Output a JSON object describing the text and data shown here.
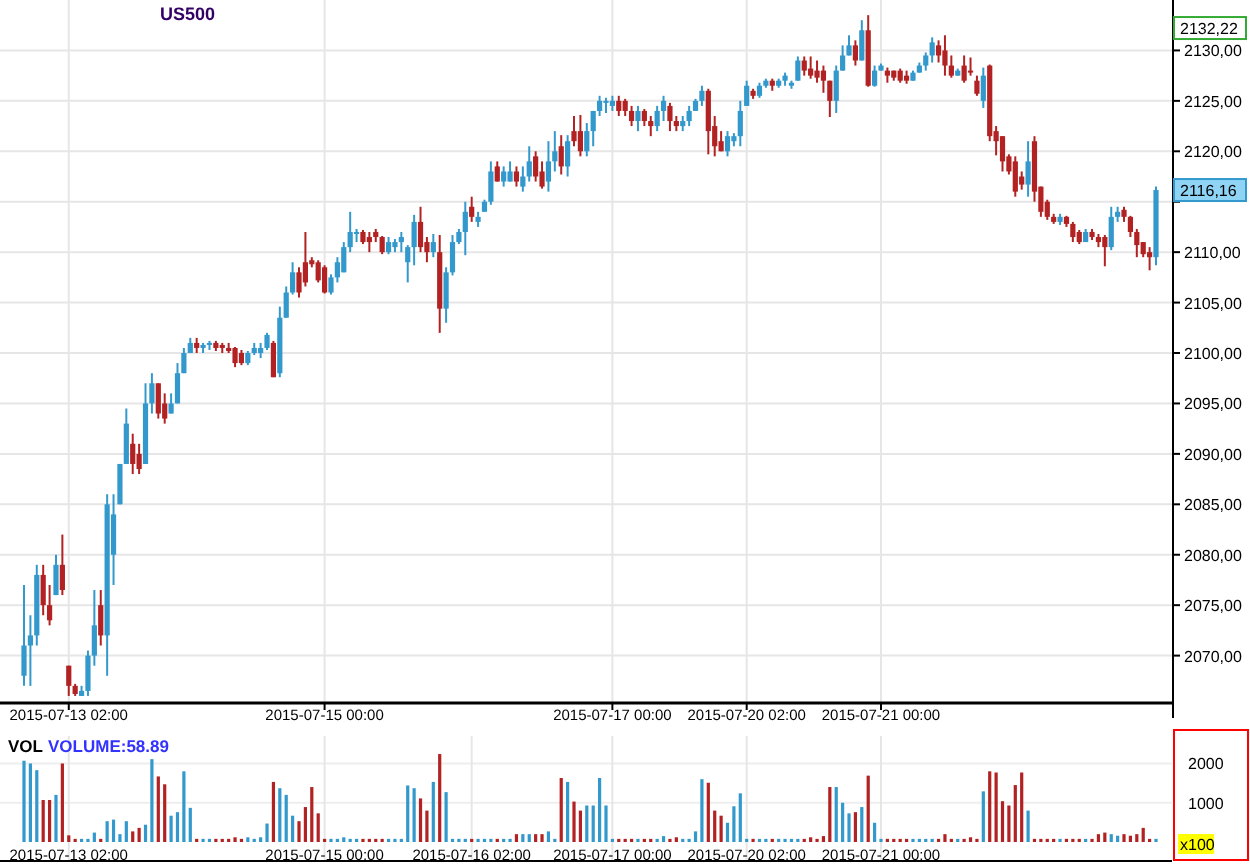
{
  "chart_data": [
    {
      "type": "candlestick",
      "title": "US500",
      "grid": true,
      "categories": [
        null,
        null,
        null,
        null,
        null,
        null,
        null,
        "2015-07-13 02:00",
        null,
        null,
        null,
        null,
        null,
        null,
        null,
        null,
        null,
        null,
        null,
        null,
        null,
        null,
        null,
        null,
        null,
        null,
        null,
        null,
        null,
        null,
        null,
        null,
        null,
        null,
        null,
        null,
        null,
        null,
        null,
        null,
        null,
        null,
        null,
        null,
        null,
        null,
        null,
        "2015-07-15 00:00",
        null,
        null,
        null,
        null,
        null,
        null,
        null,
        null,
        null,
        null,
        null,
        null,
        null,
        null,
        null,
        null,
        null,
        null,
        null,
        null,
        null,
        null,
        null,
        null,
        null,
        null,
        null,
        null,
        null,
        null,
        null,
        null,
        null,
        null,
        null,
        null,
        null,
        null,
        null,
        null,
        null,
        null,
        null,
        null,
        "2015-07-17 00:00",
        null,
        null,
        null,
        null,
        null,
        null,
        null,
        null,
        null,
        null,
        null,
        null,
        null,
        null,
        null,
        null,
        null,
        null,
        null,
        null,
        "2015-07-20 02:00",
        null,
        null,
        null,
        null,
        null,
        null,
        null,
        null,
        null,
        null,
        null,
        null,
        null,
        null,
        null,
        null,
        null,
        null,
        null,
        null,
        "2015-07-21 00:00",
        null,
        null,
        null,
        null,
        null,
        null,
        null,
        null,
        null,
        null,
        null,
        null,
        null,
        null,
        null,
        null,
        null,
        null,
        null,
        null,
        null,
        null,
        null,
        null,
        null,
        null,
        null,
        null,
        null,
        null,
        null,
        null,
        null,
        null,
        null,
        null,
        null,
        null,
        null,
        null,
        null,
        null,
        null
      ],
      "ohlc": [
        [
          2068,
          2077,
          2067,
          2071
        ],
        [
          2071,
          2074,
          2067,
          2072
        ],
        [
          2072,
          2079,
          2071,
          2078
        ],
        [
          2078,
          2079,
          2074,
          2075
        ],
        [
          2075,
          2077,
          2073,
          2073.5
        ],
        [
          2076,
          2080,
          2076,
          2079
        ],
        [
          2079,
          2082,
          2076,
          2076.5
        ],
        [
          2069,
          2069,
          2066,
          2067
        ],
        [
          2067,
          2067.2,
          2066,
          2066.2
        ],
        [
          2066,
          2067,
          2066,
          2066.5
        ],
        [
          2066.5,
          2070.5,
          2066,
          2070
        ],
        [
          2070,
          2076.5,
          2069,
          2073
        ],
        [
          2075,
          2076.5,
          2071,
          2072
        ],
        [
          2072,
          2086,
          2068,
          2085
        ],
        [
          2080,
          2086,
          2077,
          2084
        ],
        [
          2085,
          2089,
          2085,
          2089
        ],
        [
          2089,
          2094.5,
          2089,
          2093
        ],
        [
          2091,
          2092,
          2088,
          2089
        ],
        [
          2090,
          2091,
          2088,
          2088.5
        ],
        [
          2089,
          2097,
          2089,
          2095
        ],
        [
          2095,
          2098,
          2094,
          2097
        ],
        [
          2097,
          2097,
          2093.5,
          2094
        ],
        [
          2095,
          2096,
          2093,
          2093.5
        ],
        [
          2094,
          2096,
          2094,
          2095
        ],
        [
          2095,
          2099,
          2095,
          2098
        ],
        [
          2098,
          2100.5,
          2098,
          2100
        ],
        [
          2100,
          2101.5,
          2100,
          2101
        ],
        [
          2101,
          2101.5,
          2100,
          2100.5
        ],
        [
          2100.5,
          2101,
          2100,
          2100.8
        ],
        [
          2100.8,
          2101.2,
          2100.3,
          2101
        ],
        [
          2101,
          2101.2,
          2100.2,
          2100.5
        ],
        [
          2100.8,
          2101,
          2100,
          2100.5
        ],
        [
          2100.5,
          2101,
          2100,
          2100.2
        ],
        [
          2100.5,
          2100.6,
          2098.6,
          2099
        ],
        [
          2100,
          2100.3,
          2098.8,
          2099
        ],
        [
          2099,
          2100.2,
          2098.8,
          2100
        ],
        [
          2100,
          2101,
          2099.8,
          2100.5
        ],
        [
          2100,
          2101,
          2099.5,
          2100.5
        ],
        [
          2100.5,
          2102,
          2100.3,
          2101.8
        ],
        [
          2101,
          2101.2,
          2097.6,
          2097.6
        ],
        [
          2098,
          2104.6,
          2097.6,
          2103.5
        ],
        [
          2103.5,
          2106.6,
          2103.5,
          2106
        ],
        [
          2106,
          2109,
          2105.8,
          2108
        ],
        [
          2108,
          2108.5,
          2105.5,
          2106
        ],
        [
          2109,
          2112,
          2106.6,
          2107
        ],
        [
          2109.2,
          2109.5,
          2108.5,
          2108.8
        ],
        [
          2109,
          2109.2,
          2107,
          2107.2
        ],
        [
          2108.5,
          2108.7,
          2105.9,
          2106
        ],
        [
          2106,
          2107.8,
          2105.8,
          2107.5
        ],
        [
          2107.5,
          2109.5,
          2107,
          2109
        ],
        [
          2108,
          2111,
          2108,
          2110.5
        ],
        [
          2110.5,
          2114,
          2110,
          2112
        ],
        [
          2112,
          2112.3,
          2111,
          2112
        ],
        [
          2112,
          2112.2,
          2110.8,
          2111
        ],
        [
          2111.5,
          2112,
          2110,
          2111
        ],
        [
          2112,
          2112.3,
          2111,
          2111.5
        ],
        [
          2111.5,
          2111.6,
          2109.8,
          2110
        ],
        [
          2110,
          2111.5,
          2109.8,
          2111
        ],
        [
          2110.5,
          2111.3,
          2110,
          2111
        ],
        [
          2111,
          2112,
          2110,
          2111.5
        ],
        [
          2109,
          2110.7,
          2107,
          2110.5
        ],
        [
          2110.5,
          2113.7,
          2108.7,
          2113
        ],
        [
          2113,
          2114.5,
          2110,
          2110.5
        ],
        [
          2111,
          2111.5,
          2109,
          2110
        ],
        [
          2110,
          2111.8,
          2109.5,
          2111
        ],
        [
          2110,
          2111.7,
          2102,
          2104.4
        ],
        [
          2104.4,
          2108.5,
          2103,
          2108
        ],
        [
          2108,
          2111.7,
          2107.7,
          2111
        ],
        [
          2111,
          2112.3,
          2110.8,
          2112
        ],
        [
          2112,
          2115,
          2109.7,
          2114
        ],
        [
          2114.5,
          2115.5,
          2113,
          2113.5
        ],
        [
          2113,
          2114,
          2112.5,
          2113.5
        ],
        [
          2114,
          2115.2,
          2114,
          2115
        ],
        [
          2115,
          2119,
          2114.7,
          2118
        ],
        [
          2118.5,
          2119,
          2117,
          2117
        ],
        [
          2117,
          2118.5,
          2116.5,
          2118
        ],
        [
          2117,
          2119,
          2117,
          2118
        ],
        [
          2118,
          2118.5,
          2116.5,
          2117
        ],
        [
          2116.5,
          2118.5,
          2116,
          2117.5
        ],
        [
          2117.5,
          2120.5,
          2117,
          2119
        ],
        [
          2119.5,
          2120,
          2117,
          2117.5
        ],
        [
          2118,
          2119,
          2116.3,
          2116.5
        ],
        [
          2117,
          2121,
          2116,
          2119
        ],
        [
          2119,
          2122,
          2118,
          2120
        ],
        [
          2120.5,
          2121.6,
          2117.7,
          2118.5
        ],
        [
          2118.5,
          2121.6,
          2117.5,
          2121
        ],
        [
          2122,
          2123.5,
          2120.5,
          2121
        ],
        [
          2122,
          2123.6,
          2119.5,
          2120
        ],
        [
          2120,
          2122.8,
          2119.5,
          2122
        ],
        [
          2122,
          2124,
          2120.5,
          2124
        ],
        [
          2124,
          2125.5,
          2123.5,
          2125
        ],
        [
          2125,
          2125.3,
          2123.8,
          2125
        ],
        [
          2124.5,
          2125.5,
          2124,
          2125
        ],
        [
          2125,
          2125.5,
          2123.5,
          2124
        ],
        [
          2125,
          2125.2,
          2123.5,
          2124
        ],
        [
          2124,
          2124.5,
          2122.5,
          2123
        ],
        [
          2123,
          2124.5,
          2122,
          2124
        ],
        [
          2124,
          2124.2,
          2122.5,
          2123
        ],
        [
          2123,
          2123.5,
          2121.5,
          2122.5
        ],
        [
          2122.5,
          2124.5,
          2122,
          2124
        ],
        [
          2124,
          2125.5,
          2123,
          2125
        ],
        [
          2124.5,
          2124.8,
          2122,
          2123
        ],
        [
          2123,
          2123.5,
          2122,
          2122.5
        ],
        [
          2122.5,
          2123.5,
          2122,
          2123
        ],
        [
          2123,
          2124.5,
          2122.5,
          2124
        ],
        [
          2124,
          2125.2,
          2124,
          2125
        ],
        [
          2125,
          2126.5,
          2124.5,
          2126
        ],
        [
          2126,
          2126.2,
          2119.7,
          2122
        ],
        [
          2122.5,
          2123.5,
          2119.5,
          2120.5
        ],
        [
          2121,
          2122,
          2120,
          2120
        ],
        [
          2120,
          2122,
          2119.5,
          2121.5
        ],
        [
          2121,
          2121.8,
          2120.5,
          2121.5
        ],
        [
          2121.5,
          2125,
          2120.5,
          2124
        ],
        [
          2124.5,
          2127,
          2124.5,
          2126.5
        ],
        [
          2126,
          2126.2,
          2125.2,
          2125.5
        ],
        [
          2125.5,
          2126.8,
          2125.3,
          2126.5
        ],
        [
          2126.5,
          2127.2,
          2126.3,
          2127
        ],
        [
          2127,
          2127.2,
          2126,
          2126.5
        ],
        [
          2126.5,
          2127.2,
          2126.3,
          2127
        ],
        [
          2127,
          2127.8,
          2126.5,
          2127.5
        ],
        [
          2126.5,
          2127,
          2126.2,
          2126.8
        ],
        [
          2127,
          2129.4,
          2127,
          2129
        ],
        [
          2129,
          2129.4,
          2127.5,
          2128
        ],
        [
          2128.2,
          2129.4,
          2127.2,
          2127.5
        ],
        [
          2128,
          2129,
          2126.8,
          2127.3
        ],
        [
          2128,
          2128.5,
          2125.8,
          2127
        ],
        [
          2127,
          2127,
          2123.4,
          2125
        ],
        [
          2125,
          2128.5,
          2123.8,
          2128
        ],
        [
          2128,
          2130.5,
          2128,
          2129.5
        ],
        [
          2129.5,
          2131.5,
          2129.5,
          2130.5
        ],
        [
          2130.5,
          2131,
          2128.5,
          2129
        ],
        [
          2129,
          2133,
          2129,
          2132
        ],
        [
          2132,
          2133.5,
          2126.4,
          2126.5
        ],
        [
          2126.5,
          2128.5,
          2126.4,
          2128
        ],
        [
          2128,
          2128.7,
          2128,
          2128.5
        ],
        [
          2128,
          2128.3,
          2126.8,
          2127.5
        ],
        [
          2128,
          2128,
          2127,
          2127.3
        ],
        [
          2128,
          2128.2,
          2126.8,
          2127
        ],
        [
          2127.5,
          2128,
          2126.7,
          2127
        ],
        [
          2127,
          2128,
          2127,
          2127.8
        ],
        [
          2127.8,
          2128.8,
          2127.8,
          2128.5
        ],
        [
          2128.5,
          2129.8,
          2128,
          2129.5
        ],
        [
          2129.5,
          2131.3,
          2128.8,
          2130.8
        ],
        [
          2130.5,
          2131,
          2128.8,
          2129.5
        ],
        [
          2130,
          2131.5,
          2127.5,
          2128.5
        ],
        [
          2128.5,
          2129.5,
          2127.3,
          2127.5
        ],
        [
          2127.5,
          2128.2,
          2127.5,
          2128
        ],
        [
          2128.5,
          2129.5,
          2126.8,
          2127
        ],
        [
          2128,
          2129.3,
          2127.5,
          2127.8
        ],
        [
          2127,
          2127.5,
          2125.5,
          2125.7
        ],
        [
          2125,
          2128.3,
          2124.3,
          2127.5
        ],
        [
          2128.5,
          2128.6,
          2121,
          2121.5
        ],
        [
          2122,
          2122.5,
          2119.6,
          2121
        ],
        [
          2121.5,
          2121.5,
          2118,
          2119
        ],
        [
          2119.5,
          2119.7,
          2117.7,
          2118
        ],
        [
          2119,
          2119.5,
          2115.5,
          2116
        ],
        [
          2117.5,
          2118,
          2116.2,
          2116.7
        ],
        [
          2116.7,
          2121,
          2115.5,
          2119
        ],
        [
          2121,
          2121.5,
          2115,
          2116
        ],
        [
          2116.5,
          2116.5,
          2113.5,
          2114
        ],
        [
          2115,
          2115.2,
          2113.2,
          2113.5
        ],
        [
          2113.5,
          2113.8,
          2112.8,
          2113
        ],
        [
          2113,
          2113.8,
          2112.7,
          2113.5
        ],
        [
          2113.5,
          2113.6,
          2112.5,
          2112.8
        ],
        [
          2112.8,
          2113,
          2111,
          2111.5
        ],
        [
          2112,
          2112.2,
          2110.8,
          2111
        ],
        [
          2111,
          2112.3,
          2111,
          2112
        ],
        [
          2112,
          2112.3,
          2111.2,
          2111.5
        ],
        [
          2111.5,
          2111.8,
          2110.5,
          2111
        ],
        [
          2111.5,
          2111.7,
          2108.6,
          2110.5
        ],
        [
          2110.5,
          2114.5,
          2110.2,
          2113.5
        ],
        [
          2113.5,
          2114.5,
          2113,
          2114
        ],
        [
          2114.2,
          2114.5,
          2113,
          2113.5
        ],
        [
          2113.5,
          2113.6,
          2111.5,
          2112
        ],
        [
          2112,
          2112.3,
          2109.5,
          2110.7
        ],
        [
          2111,
          2111,
          2109.5,
          2109.8
        ],
        [
          2110,
          2110.5,
          2108.2,
          2109.5
        ],
        [
          2109.5,
          2116.5,
          2108.7,
          2116.16
        ]
      ],
      "colors": [
        "#3399cc",
        "#3399cc",
        "#3399cc",
        "#b22222",
        "#b22222",
        "#3399cc",
        "#b22222",
        "#b22222",
        "#b22222",
        "#3399cc",
        "#3399cc",
        "#3399cc",
        "#b22222",
        "#3399cc",
        "#3399cc",
        "#3399cc",
        "#3399cc",
        "#b22222",
        "#b22222",
        "#3399cc",
        "#3399cc",
        "#b22222",
        "#b22222",
        "#3399cc",
        "#3399cc",
        "#3399cc",
        "#3399cc",
        "#b22222",
        "#3399cc",
        "#3399cc",
        "#b22222",
        "#b22222",
        "#b22222",
        "#b22222",
        "#b22222",
        "#3399cc",
        "#3399cc",
        "#3399cc",
        "#3399cc",
        "#b22222",
        "#3399cc",
        "#3399cc",
        "#3399cc",
        "#b22222",
        "#b22222",
        "#b22222",
        "#b22222",
        "#b22222",
        "#3399cc",
        "#3399cc",
        "#3399cc",
        "#3399cc",
        "#3399cc",
        "#b22222",
        "#b22222",
        "#b22222",
        "#b22222",
        "#3399cc",
        "#3399cc",
        "#3399cc",
        "#3399cc",
        "#3399cc",
        "#b22222",
        "#b22222",
        "#3399cc",
        "#b22222",
        "#3399cc",
        "#3399cc",
        "#3399cc",
        "#3399cc",
        "#b22222",
        "#3399cc",
        "#3399cc",
        "#3399cc",
        "#b22222",
        "#3399cc",
        "#3399cc",
        "#b22222",
        "#3399cc",
        "#3399cc",
        "#b22222",
        "#b22222",
        "#3399cc",
        "#3399cc",
        "#b22222",
        "#3399cc",
        "#b22222",
        "#b22222",
        "#3399cc",
        "#3399cc",
        "#3399cc",
        "#3399cc",
        "#3399cc",
        "#b22222",
        "#b22222",
        "#b22222",
        "#3399cc",
        "#b22222",
        "#b22222",
        "#3399cc",
        "#3399cc",
        "#b22222",
        "#b22222",
        "#3399cc",
        "#3399cc",
        "#3399cc",
        "#3399cc",
        "#b22222",
        "#b22222",
        "#b22222",
        "#3399cc",
        "#3399cc",
        "#3399cc",
        "#3399cc",
        "#b22222",
        "#3399cc",
        "#3399cc",
        "#b22222",
        "#3399cc",
        "#3399cc",
        "#3399cc",
        "#3399cc",
        "#b22222",
        "#b22222",
        "#b22222",
        "#b22222",
        "#b22222",
        "#3399cc",
        "#3399cc",
        "#3399cc",
        "#b22222",
        "#3399cc",
        "#b22222",
        "#3399cc",
        "#3399cc",
        "#b22222",
        "#b22222",
        "#b22222",
        "#b22222",
        "#3399cc",
        "#3399cc",
        "#3399cc",
        "#3399cc",
        "#b22222",
        "#b22222",
        "#b22222",
        "#3399cc",
        "#b22222",
        "#b22222",
        "#b22222",
        "#3399cc",
        "#b22222",
        "#b22222",
        "#b22222",
        "#b22222",
        "#b22222",
        "#b22222",
        "#3399cc",
        "#b22222",
        "#b22222",
        "#b22222",
        "#b22222",
        "#3399cc",
        "#b22222",
        "#b22222",
        "#b22222",
        "#3399cc",
        "#b22222",
        "#b22222",
        "#b22222",
        "#3399cc",
        "#3399cc",
        "#b22222",
        "#b22222",
        "#b22222",
        "#b22222",
        "#b22222",
        "#3399cc"
      ],
      "ylim": [
        2065.4,
        2135
      ],
      "yticks": [
        {
          "value": 2070,
          "label": "2070,00"
        },
        {
          "value": 2075,
          "label": "2075,00"
        },
        {
          "value": 2080,
          "label": "2080,00"
        },
        {
          "value": 2085,
          "label": "2085,00"
        },
        {
          "value": 2090,
          "label": "2090,00"
        },
        {
          "value": 2095,
          "label": "2095,00"
        },
        {
          "value": 2100,
          "label": "2100,00"
        },
        {
          "value": 2105,
          "label": "2105,00"
        },
        {
          "value": 2110,
          "label": "2110,00"
        },
        {
          "value": 2115,
          "label": null
        },
        {
          "value": 2120,
          "label": "2120,00"
        },
        {
          "value": 2125,
          "label": "2125,00"
        },
        {
          "value": 2130,
          "label": "2130,00"
        }
      ],
      "annotations": [
        {
          "text": "2132,22",
          "y": 2132.22
        },
        {
          "text": "2116,16",
          "y": 2116.16
        }
      ]
    },
    {
      "type": "bar",
      "title": "VOL",
      "subtitle": "VOLUME:58.89",
      "annotations": [
        "x100"
      ],
      "grid": true,
      "categories": [
        null,
        null,
        null,
        null,
        null,
        null,
        null,
        "2015-07-13 02:00",
        null,
        null,
        null,
        null,
        null,
        null,
        null,
        null,
        null,
        null,
        null,
        null,
        null,
        null,
        null,
        null,
        null,
        null,
        null,
        null,
        null,
        null,
        null,
        null,
        null,
        null,
        null,
        null,
        null,
        null,
        null,
        null,
        null,
        null,
        null,
        null,
        null,
        null,
        null,
        "2015-07-15 00:00",
        null,
        null,
        null,
        null,
        null,
        null,
        null,
        null,
        null,
        null,
        null,
        null,
        null,
        null,
        null,
        null,
        null,
        null,
        null,
        null,
        null,
        null,
        "2015-07-16 02:00",
        null,
        null,
        null,
        null,
        null,
        null,
        null,
        null,
        null,
        null,
        null,
        null,
        null,
        null,
        null,
        null,
        null,
        null,
        null,
        null,
        null,
        "2015-07-17 00:00",
        null,
        null,
        null,
        null,
        null,
        null,
        null,
        null,
        null,
        null,
        null,
        null,
        null,
        null,
        null,
        null,
        null,
        null,
        null,
        null,
        "2015-07-20 02:00",
        null,
        null,
        null,
        null,
        null,
        null,
        null,
        null,
        null,
        null,
        null,
        null,
        null,
        null,
        null,
        null,
        null,
        null,
        null,
        null,
        "2015-07-21 00:00",
        null,
        null,
        null,
        null,
        null,
        null,
        null,
        null,
        null,
        null,
        null,
        null,
        null,
        null,
        null,
        null,
        null,
        null,
        null,
        null,
        null,
        null,
        null,
        null,
        null,
        null,
        null,
        null,
        null,
        null,
        null,
        null,
        null,
        null,
        null,
        null,
        null,
        null,
        null,
        null,
        null,
        null,
        null
      ],
      "values": [
        2070,
        2000,
        1830,
        1070,
        1070,
        1200,
        2000,
        170,
        80,
        80,
        80,
        240,
        80,
        530,
        570,
        200,
        530,
        270,
        360,
        440,
        2110,
        1670,
        1470,
        670,
        760,
        1800,
        870,
        80,
        80,
        80,
        80,
        80,
        80,
        120,
        80,
        120,
        80,
        120,
        470,
        1530,
        1370,
        1200,
        670,
        530,
        890,
        1400,
        730,
        80,
        80,
        80,
        120,
        80,
        80,
        80,
        80,
        80,
        80,
        80,
        80,
        80,
        1440,
        1370,
        1110,
        800,
        1530,
        2240,
        1270,
        80,
        80,
        80,
        80,
        80,
        80,
        80,
        80,
        80,
        80,
        200,
        200,
        200,
        200,
        200,
        270,
        80,
        1630,
        1530,
        1030,
        800,
        930,
        930,
        1630,
        930,
        80,
        80,
        80,
        80,
        80,
        80,
        80,
        80,
        150,
        80,
        120,
        80,
        80,
        270,
        1600,
        1510,
        800,
        670,
        490,
        910,
        1240,
        80,
        80,
        80,
        80,
        80,
        80,
        80,
        80,
        80,
        80,
        120,
        80,
        150,
        1400,
        1400,
        1000,
        730,
        760,
        890,
        1690,
        490,
        80,
        80,
        80,
        80,
        80,
        80,
        80,
        80,
        80,
        80,
        200,
        80,
        80,
        80,
        120,
        80,
        1290,
        1800,
        1770,
        1040,
        930,
        1450,
        1770,
        800,
        80,
        80,
        80,
        80,
        80,
        80,
        80,
        80,
        80,
        80,
        200,
        240,
        200,
        160,
        200,
        160,
        200,
        360,
        80,
        80
      ],
      "colors": [
        "#3399cc",
        "#3399cc",
        "#3399cc",
        "#b22222",
        "#b22222",
        "#3399cc",
        "#b22222",
        "#b22222",
        "#b22222",
        "#3399cc",
        "#3399cc",
        "#3399cc",
        "#b22222",
        "#3399cc",
        "#3399cc",
        "#3399cc",
        "#3399cc",
        "#b22222",
        "#b22222",
        "#3399cc",
        "#3399cc",
        "#b22222",
        "#b22222",
        "#3399cc",
        "#3399cc",
        "#3399cc",
        "#3399cc",
        "#b22222",
        "#3399cc",
        "#3399cc",
        "#b22222",
        "#b22222",
        "#b22222",
        "#b22222",
        "#b22222",
        "#3399cc",
        "#3399cc",
        "#3399cc",
        "#3399cc",
        "#b22222",
        "#3399cc",
        "#3399cc",
        "#3399cc",
        "#b22222",
        "#b22222",
        "#b22222",
        "#b22222",
        "#b22222",
        "#3399cc",
        "#3399cc",
        "#3399cc",
        "#3399cc",
        "#3399cc",
        "#b22222",
        "#b22222",
        "#b22222",
        "#b22222",
        "#3399cc",
        "#3399cc",
        "#3399cc",
        "#3399cc",
        "#3399cc",
        "#b22222",
        "#b22222",
        "#3399cc",
        "#b22222",
        "#3399cc",
        "#3399cc",
        "#3399cc",
        "#3399cc",
        "#b22222",
        "#3399cc",
        "#3399cc",
        "#3399cc",
        "#b22222",
        "#3399cc",
        "#3399cc",
        "#b22222",
        "#3399cc",
        "#3399cc",
        "#b22222",
        "#b22222",
        "#3399cc",
        "#3399cc",
        "#b22222",
        "#3399cc",
        "#b22222",
        "#b22222",
        "#3399cc",
        "#3399cc",
        "#3399cc",
        "#3399cc",
        "#3399cc",
        "#b22222",
        "#b22222",
        "#b22222",
        "#3399cc",
        "#b22222",
        "#b22222",
        "#3399cc",
        "#3399cc",
        "#b22222",
        "#b22222",
        "#3399cc",
        "#3399cc",
        "#3399cc",
        "#3399cc",
        "#b22222",
        "#b22222",
        "#b22222",
        "#3399cc",
        "#3399cc",
        "#3399cc",
        "#3399cc",
        "#b22222",
        "#3399cc",
        "#3399cc",
        "#b22222",
        "#3399cc",
        "#3399cc",
        "#3399cc",
        "#3399cc",
        "#b22222",
        "#b22222",
        "#b22222",
        "#b22222",
        "#b22222",
        "#3399cc",
        "#3399cc",
        "#3399cc",
        "#b22222",
        "#3399cc",
        "#b22222",
        "#3399cc",
        "#3399cc",
        "#b22222",
        "#b22222",
        "#b22222",
        "#b22222",
        "#3399cc",
        "#3399cc",
        "#3399cc",
        "#3399cc",
        "#b22222",
        "#b22222",
        "#b22222",
        "#3399cc",
        "#b22222",
        "#b22222",
        "#b22222",
        "#3399cc",
        "#b22222",
        "#b22222",
        "#b22222",
        "#b22222",
        "#b22222",
        "#b22222",
        "#3399cc",
        "#b22222",
        "#b22222",
        "#b22222",
        "#b22222",
        "#3399cc",
        "#b22222",
        "#b22222",
        "#b22222",
        "#3399cc",
        "#b22222",
        "#b22222",
        "#b22222",
        "#3399cc",
        "#3399cc",
        "#b22222",
        "#b22222",
        "#b22222",
        "#b22222",
        "#b22222",
        "#3399cc"
      ],
      "ylim": [
        0,
        2700
      ],
      "yticks": [
        1000,
        2000
      ]
    }
  ]
}
